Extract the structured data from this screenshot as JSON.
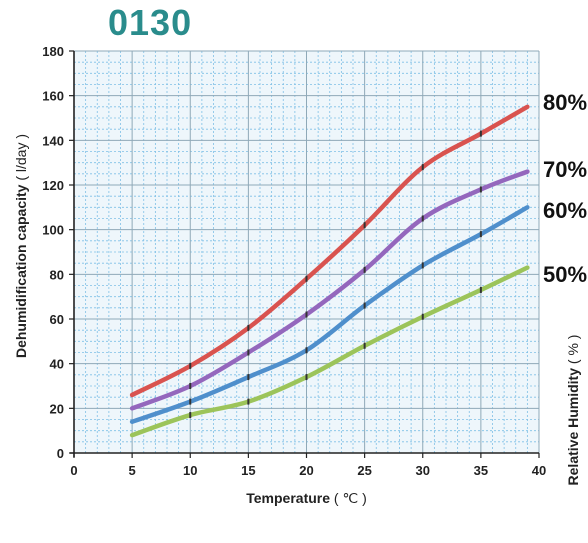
{
  "model": "0130",
  "chart_data": {
    "type": "line",
    "xlabel": "Temperature",
    "xunit": "( ℃ )",
    "ylabel": "Dehumidification capacity",
    "yunit": "( l/day )",
    "y2label": "Relative Humidity",
    "y2unit": "( % )",
    "xlim": [
      0,
      40
    ],
    "ylim": [
      0,
      180
    ],
    "xticks": [
      0,
      5,
      10,
      15,
      20,
      25,
      30,
      35,
      40
    ],
    "yticks": [
      0,
      20,
      40,
      60,
      80,
      100,
      120,
      140,
      160,
      180
    ],
    "grid": true,
    "series": [
      {
        "name": "80%",
        "color": "#d9534f",
        "x": [
          5,
          10,
          15,
          20,
          25,
          30,
          35,
          39
        ],
        "values": [
          26,
          39,
          56,
          78,
          102,
          128,
          143,
          155
        ]
      },
      {
        "name": "70%",
        "color": "#9467bd",
        "x": [
          5,
          10,
          15,
          20,
          25,
          30,
          35,
          39
        ],
        "values": [
          20,
          30,
          45,
          62,
          82,
          105,
          118,
          126
        ]
      },
      {
        "name": "60%",
        "color": "#4f8fcc",
        "x": [
          5,
          10,
          15,
          20,
          25,
          30,
          35,
          39
        ],
        "values": [
          14,
          23,
          34,
          46,
          66,
          84,
          98,
          110
        ]
      },
      {
        "name": "50%",
        "color": "#9cc45a",
        "x": [
          5,
          10,
          15,
          20,
          25,
          30,
          35,
          39
        ],
        "values": [
          8,
          17,
          23,
          34,
          48,
          61,
          73,
          83
        ]
      }
    ]
  }
}
